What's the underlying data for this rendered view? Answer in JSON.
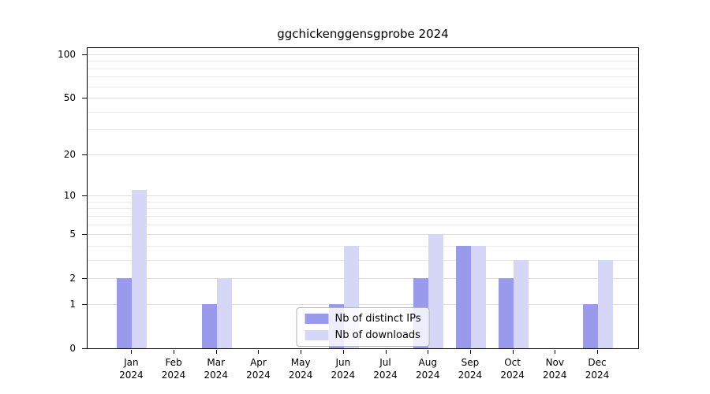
{
  "title": "ggchickenggensgprobe 2024",
  "chart_data": {
    "type": "bar",
    "title": "ggchickenggensgprobe 2024",
    "year": "2024",
    "categories": [
      "Jan",
      "Feb",
      "Mar",
      "Apr",
      "May",
      "Jun",
      "Jul",
      "Aug",
      "Sep",
      "Oct",
      "Nov",
      "Dec"
    ],
    "x_tick_labels": [
      "Jan 2024",
      "Feb 2024",
      "Mar 2024",
      "Apr 2024",
      "May 2024",
      "Jun 2024",
      "Jul 2024",
      "Aug 2024",
      "Sep 2024",
      "Oct 2024",
      "Nov 2024",
      "Dec 2024"
    ],
    "series": [
      {
        "name": "Nb of distinct IPs",
        "color": "#9a9aec",
        "values": [
          2,
          0,
          1,
          0,
          0,
          1,
          0,
          2,
          4,
          2,
          0,
          1
        ]
      },
      {
        "name": "Nb of downloads",
        "color": "#d6d6f6",
        "values": [
          11,
          0,
          2,
          0,
          0,
          4,
          0,
          5,
          4,
          3,
          0,
          3
        ]
      }
    ],
    "yticks": [
      0,
      1,
      2,
      5,
      10,
      20,
      50,
      100
    ],
    "ylim": [
      0,
      100
    ],
    "scale": "log1p",
    "grid": true,
    "legend_position": "lower center"
  },
  "colors": {
    "background": "#ffffff",
    "axis": "#000000",
    "grid_major": "#dcdcdc",
    "grid_minor": "#ebebeb",
    "legend_border": "#b3b3b3"
  }
}
